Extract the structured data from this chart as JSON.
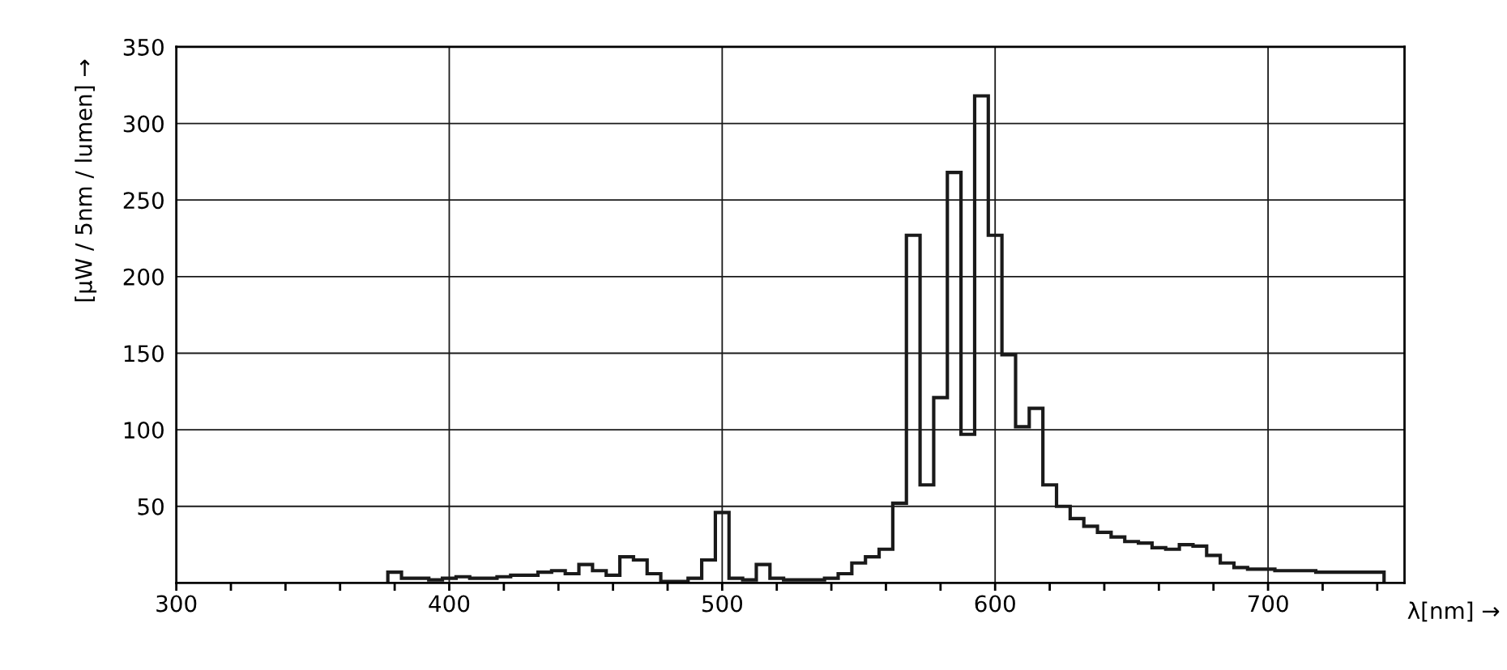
{
  "chart_data": {
    "type": "histogram",
    "xlabel": "λ[nm] →",
    "ylabel": "[μW / 5nm / lumen] →",
    "bins": [
      377.5,
      382.5,
      387.5,
      392.5,
      397.5,
      402.5,
      407.5,
      412.5,
      417.5,
      422.5,
      427.5,
      432.5,
      437.5,
      442.5,
      447.5,
      452.5,
      457.5,
      462.5,
      467.5,
      472.5,
      477.5,
      482.5,
      487.5,
      492.5,
      497.5,
      502.5,
      507.5,
      512.5,
      517.5,
      522.5,
      527.5,
      532.5,
      537.5,
      542.5,
      547.5,
      552.5,
      557.5,
      562.5,
      567.5,
      572.5,
      577.5,
      582.5,
      587.5,
      592.5,
      597.5,
      602.5,
      607.5,
      612.5,
      617.5,
      622.5,
      627.5,
      632.5,
      637.5,
      642.5,
      647.5,
      652.5,
      657.5,
      662.5,
      667.5,
      672.5,
      677.5,
      682.5,
      687.5,
      692.5,
      697.5,
      702.5,
      707.5,
      712.5,
      717.5,
      722.5,
      727.5,
      732.5,
      737.5,
      742.5
    ],
    "values": [
      7,
      3,
      3,
      2,
      3,
      4,
      3,
      3,
      4,
      5,
      5,
      7,
      8,
      6,
      12,
      8,
      5,
      17,
      15,
      6,
      1,
      1,
      3,
      15,
      46,
      3,
      2,
      12,
      3,
      2,
      2,
      2,
      3,
      6,
      13,
      17,
      22,
      52,
      227,
      64,
      121,
      268,
      97,
      318,
      227,
      149,
      102,
      114,
      64,
      50,
      42,
      37,
      33,
      30,
      27,
      26,
      23,
      22,
      25,
      24,
      18,
      13,
      10,
      9,
      9,
      8,
      8,
      8,
      7,
      7,
      7,
      7,
      7
    ],
    "color": "#1a1a1a",
    "xlim": [
      300,
      750
    ],
    "xticks": [
      300,
      {
        "value": 320,
        "label": null
      },
      {
        "value": 340,
        "label": null
      },
      {
        "value": 360,
        "label": null
      },
      {
        "value": 380,
        "label": null
      },
      400,
      {
        "value": 420,
        "label": null
      },
      {
        "value": 440,
        "label": null
      },
      {
        "value": 460,
        "label": null
      },
      {
        "value": 480,
        "label": null
      },
      500,
      {
        "value": 520,
        "label": null
      },
      {
        "value": 540,
        "label": null
      },
      {
        "value": 560,
        "label": null
      },
      {
        "value": 580,
        "label": null
      },
      600,
      {
        "value": 620,
        "label": null
      },
      {
        "value": 640,
        "label": null
      },
      {
        "value": 660,
        "label": null
      },
      {
        "value": 680,
        "label": null
      },
      700,
      {
        "value": 720,
        "label": null
      },
      {
        "value": 740,
        "label": null
      }
    ],
    "ylim": [
      0,
      350
    ],
    "yticks": [
      50,
      100,
      150,
      200,
      250,
      300,
      350
    ],
    "grid": true
  }
}
